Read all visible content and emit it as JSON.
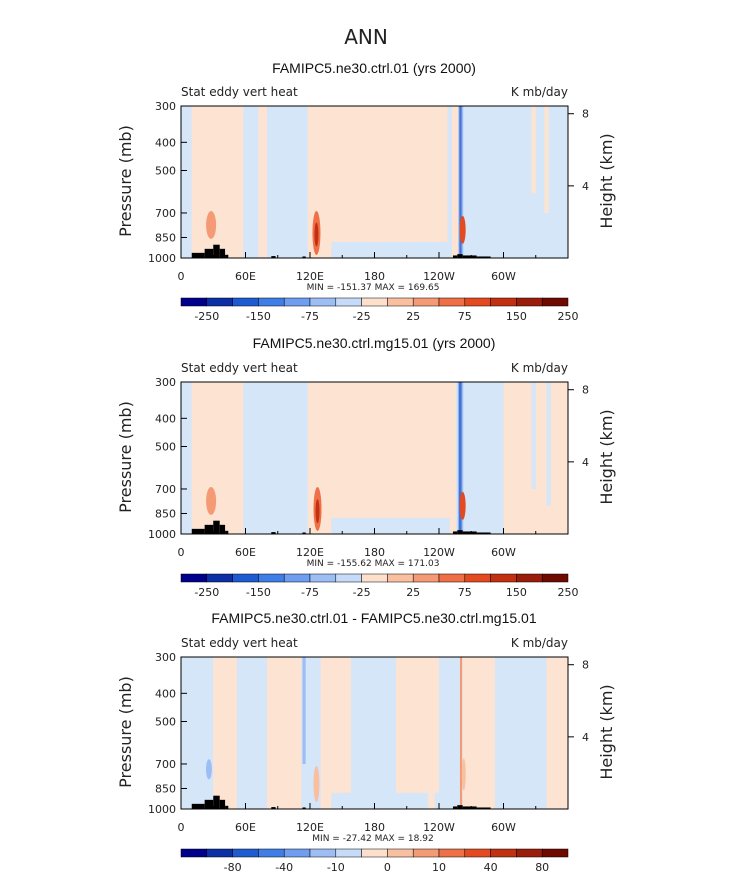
{
  "figure": {
    "title": "ANN"
  },
  "chart_data": [
    {
      "type": "heatmap",
      "title": "FAMIPC5.ne30.ctrl.01 (yrs 2000)",
      "left_string": "Stat eddy vert heat",
      "right_string": "K mb/day",
      "ylabel": "Pressure (mb)",
      "y2label": "Height (km)",
      "x_ticks": [
        "0",
        "60E",
        "120E",
        "180",
        "120W",
        "60W"
      ],
      "y_ticks": [
        "300",
        "400",
        "500",
        "700",
        "850",
        "1000"
      ],
      "y2_ticks": [
        "8",
        "4"
      ],
      "stats": "MIN = -151.37   MAX = 169.65",
      "colorbar_labels": [
        "-250",
        "-150",
        "-75",
        "-25",
        "25",
        "75",
        "150",
        "250"
      ],
      "min": -151.37,
      "max": 169.65
    },
    {
      "type": "heatmap",
      "title": "FAMIPC5.ne30.ctrl.mg15.01 (yrs 2000)",
      "left_string": "Stat eddy vert heat",
      "right_string": "K mb/day",
      "ylabel": "Pressure (mb)",
      "y2label": "Height (km)",
      "x_ticks": [
        "0",
        "60E",
        "120E",
        "180",
        "120W",
        "60W"
      ],
      "y_ticks": [
        "300",
        "400",
        "500",
        "700",
        "850",
        "1000"
      ],
      "y2_ticks": [
        "8",
        "4"
      ],
      "stats": "MIN = -155.62   MAX = 171.03",
      "colorbar_labels": [
        "-250",
        "-150",
        "-75",
        "-25",
        "25",
        "75",
        "150",
        "250"
      ],
      "min": -155.62,
      "max": 171.03
    },
    {
      "type": "heatmap",
      "title": "FAMIPC5.ne30.ctrl.01 - FAMIPC5.ne30.ctrl.mg15.01",
      "left_string": "Stat eddy vert heat",
      "right_string": "K mb/day",
      "ylabel": "Pressure (mb)",
      "y2label": "Height (km)",
      "x_ticks": [
        "0",
        "60E",
        "120E",
        "180",
        "120W",
        "60W"
      ],
      "y_ticks": [
        "300",
        "400",
        "500",
        "700",
        "850",
        "1000"
      ],
      "y2_ticks": [
        "8",
        "4"
      ],
      "stats": "MIN = -27.42   MAX = 18.92",
      "colorbar_labels": [
        "-80",
        "-40",
        "-10",
        "0",
        "10",
        "40",
        "80"
      ],
      "min": -27.42,
      "max": 18.92
    }
  ],
  "colors": {
    "palette": [
      "#00008b",
      "#0c2fa6",
      "#1f5bd0",
      "#3f7ee6",
      "#6f9ef0",
      "#9dbef5",
      "#c6dbf7",
      "#fde0cc",
      "#f8c0a0",
      "#f49a74",
      "#ef7047",
      "#e44a1f",
      "#c23012",
      "#9a1c0a",
      "#6e0a00"
    ],
    "light_blue": "#d4e6f8",
    "light_red": "#fde3d2",
    "topography": "#000000"
  }
}
